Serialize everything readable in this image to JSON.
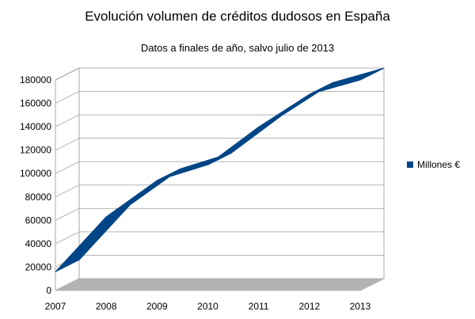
{
  "colors": {
    "series": "#004586",
    "floor": "#b3b3b3",
    "grid": "#b3b3b3",
    "axis": "#a8a8a8"
  },
  "chart_data": {
    "type": "area",
    "title": "Evolución volumen de créditos dudosos en España",
    "subtitle": "Datos a finales de año, salvo julio de 2013",
    "xlabel": "",
    "ylabel": "",
    "x": [
      2007,
      2008,
      2009,
      2010,
      2011,
      2012,
      2013
    ],
    "x_tick_labels": [
      "2007",
      "2008",
      "2009",
      "2010",
      "2011",
      "2012",
      "2013"
    ],
    "series": [
      {
        "name": "Millones €",
        "values": [
          16000,
          63000,
          94000,
          107500,
          139800,
          167700,
          180000
        ]
      }
    ],
    "ylim": [
      0,
      180000
    ],
    "y_ticks": [
      0,
      20000,
      40000,
      60000,
      80000,
      100000,
      120000,
      140000,
      160000,
      180000
    ],
    "y_tick_labels": [
      "0",
      "20000",
      "40000",
      "60000",
      "80000",
      "100000",
      "120000",
      "140000",
      "160000",
      "180000"
    ],
    "grid": true,
    "legend": "right",
    "style": "3d"
  }
}
